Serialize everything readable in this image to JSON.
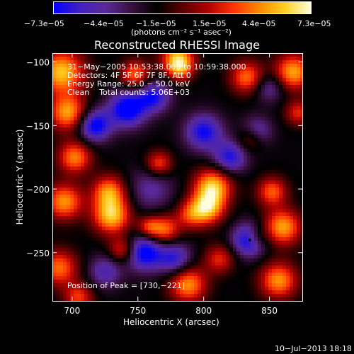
{
  "chart_data": {
    "type": "heatmap",
    "title": "Reconstructed RHESSI Image",
    "xlabel": "Heliocentric X (arcsec)",
    "ylabel": "Heliocentric Y (arcsec)",
    "xlim": [
      685,
      875
    ],
    "ylim": [
      -288,
      -93
    ],
    "xticks": [
      700,
      750,
      800,
      850
    ],
    "xtick_labels": [
      "700",
      "750",
      "800",
      "850"
    ],
    "yticks": [
      -100,
      -150,
      -200,
      -250
    ],
    "ytick_labels": [
      "−100",
      "−150",
      "−200",
      "−250"
    ],
    "colorbar": {
      "min": -7.3e-05,
      "max": 7.3e-05,
      "tick_labels": [
        "−7.3e−05",
        "−4.4e−05",
        "−1.5e−05",
        "1.5e−05",
        "4.4e−05",
        "7.3e−05"
      ],
      "units": "(photons cm⁻² s⁻¹ asec⁻²)",
      "colors": [
        "#0000ff",
        "#4020c0",
        "#5a2a9a",
        "#3a1040",
        "#000000",
        "#5a0000",
        "#b00000",
        "#ff3300",
        "#ff8800",
        "#ffd020",
        "#ffffe0"
      ]
    },
    "annotations": [
      "31−May−2005 10:53:38.000 to 10:59:38.000",
      "Detectors: 4F 5F 6F 7F 8F, Att 0",
      "Energy Range: 25.0 − 50.0 keV",
      "Clean    Total counts: 5.06E+03"
    ],
    "peak_label": "Position of Peak = [730,−221]",
    "peak": [
      730,
      -221
    ],
    "blobs": [
      {
        "x": 692,
        "y": -108,
        "v": 1.0,
        "s": 12
      },
      {
        "x": 697,
        "y": -140,
        "v": 0.9,
        "s": 10
      },
      {
        "x": 702,
        "y": -175,
        "v": 0.8,
        "s": 9
      },
      {
        "x": 694,
        "y": -210,
        "v": 0.85,
        "s": 10
      },
      {
        "x": 690,
        "y": -262,
        "v": 0.75,
        "s": 10
      },
      {
        "x": 705,
        "y": -285,
        "v": 0.6,
        "s": 8
      },
      {
        "x": 728,
        "y": -202,
        "v": 0.8,
        "s": 9
      },
      {
        "x": 730,
        "y": -221,
        "v": 1.0,
        "s": 10
      },
      {
        "x": 738,
        "y": -248,
        "v": 0.6,
        "s": 7
      },
      {
        "x": 748,
        "y": -110,
        "v": 0.75,
        "s": 8
      },
      {
        "x": 766,
        "y": -180,
        "v": 0.65,
        "s": 7
      },
      {
        "x": 770,
        "y": -232,
        "v": 0.75,
        "s": 8
      },
      {
        "x": 758,
        "y": -230,
        "v": 0.55,
        "s": 6
      },
      {
        "x": 780,
        "y": -96,
        "v": 0.8,
        "s": 9
      },
      {
        "x": 782,
        "y": -105,
        "v": 0.65,
        "s": 7
      },
      {
        "x": 790,
        "y": -220,
        "v": 0.55,
        "s": 8
      },
      {
        "x": 788,
        "y": -275,
        "v": 0.85,
        "s": 10
      },
      {
        "x": 807,
        "y": -198,
        "v": 1.0,
        "s": 10
      },
      {
        "x": 803,
        "y": -215,
        "v": 0.9,
        "s": 9
      },
      {
        "x": 812,
        "y": -255,
        "v": 0.55,
        "s": 8
      },
      {
        "x": 833,
        "y": -112,
        "v": 0.75,
        "s": 9
      },
      {
        "x": 836,
        "y": -160,
        "v": 0.55,
        "s": 7
      },
      {
        "x": 840,
        "y": -238,
        "v": 0.45,
        "s": 6
      },
      {
        "x": 852,
        "y": -202,
        "v": 0.7,
        "s": 8
      },
      {
        "x": 860,
        "y": -230,
        "v": 0.9,
        "s": 10
      },
      {
        "x": 857,
        "y": -272,
        "v": 0.85,
        "s": 10
      },
      {
        "x": 868,
        "y": -108,
        "v": 0.9,
        "s": 10
      },
      {
        "x": 872,
        "y": -140,
        "v": 0.55,
        "s": 7
      },
      {
        "x": 717,
        "y": -150,
        "v": -0.85,
        "s": 9
      },
      {
        "x": 742,
        "y": -137,
        "v": -0.9,
        "s": 10
      },
      {
        "x": 762,
        "y": -127,
        "v": -0.7,
        "s": 9
      },
      {
        "x": 800,
        "y": -155,
        "v": -0.75,
        "s": 10
      },
      {
        "x": 820,
        "y": -175,
        "v": -0.7,
        "s": 9
      },
      {
        "x": 840,
        "y": -155,
        "v": -0.6,
        "s": 8
      },
      {
        "x": 755,
        "y": -250,
        "v": -0.85,
        "s": 10
      },
      {
        "x": 778,
        "y": -255,
        "v": -0.65,
        "s": 9
      },
      {
        "x": 835,
        "y": -240,
        "v": -0.9,
        "s": 9
      },
      {
        "x": 725,
        "y": -265,
        "v": -0.5,
        "s": 9
      },
      {
        "x": 850,
        "y": -120,
        "v": -0.45,
        "s": 8
      },
      {
        "x": 760,
        "y": -200,
        "v": -0.4,
        "s": 12
      }
    ]
  },
  "footer": {
    "date": "10−Jul−2013 18:18"
  }
}
